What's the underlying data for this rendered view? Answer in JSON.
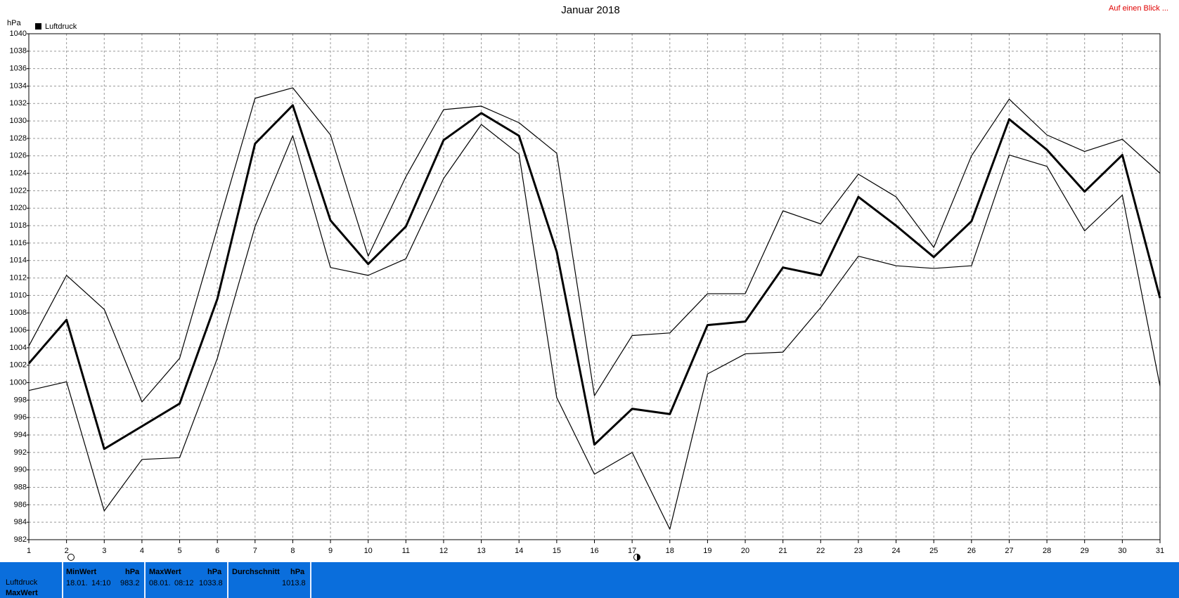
{
  "chart_data": {
    "type": "line",
    "title": "Januar 2018",
    "y_unit": "hPa",
    "legend": "Luftdruck",
    "x": [
      1,
      2,
      3,
      4,
      5,
      6,
      7,
      8,
      9,
      10,
      11,
      12,
      13,
      14,
      15,
      16,
      17,
      18,
      19,
      20,
      21,
      22,
      23,
      24,
      25,
      26,
      27,
      28,
      29,
      30,
      31
    ],
    "xlim": [
      1,
      31
    ],
    "xticks": [
      1,
      2,
      3,
      4,
      5,
      6,
      7,
      8,
      9,
      10,
      11,
      12,
      13,
      14,
      15,
      16,
      17,
      18,
      19,
      20,
      21,
      22,
      23,
      24,
      25,
      26,
      27,
      28,
      29,
      30,
      31
    ],
    "ylim": [
      982,
      1040
    ],
    "yticks": [
      982,
      984,
      986,
      988,
      990,
      992,
      994,
      996,
      998,
      1000,
      1002,
      1004,
      1006,
      1008,
      1010,
      1012,
      1014,
      1016,
      1018,
      1020,
      1022,
      1024,
      1026,
      1028,
      1030,
      1032,
      1034,
      1036,
      1038,
      1040
    ],
    "grid": true,
    "series": [
      {
        "color": "#000000",
        "linewidth": 1.2,
        "values": [
          1004.2,
          1012.3,
          1008.4,
          997.8,
          1002.8,
          1017.7,
          1032.6,
          1033.8,
          1028.4,
          1014.5,
          1023.6,
          1031.3,
          1031.7,
          1029.8,
          1026.3,
          998.5,
          1005.4,
          1005.7,
          1010.2,
          1010.2,
          1019.7,
          1018.2,
          1023.9,
          1021.3,
          1015.5,
          1026.0,
          1032.5,
          1028.4,
          1026.5,
          1027.9,
          1024.0
        ]
      },
      {
        "name": "Luftdruck",
        "color": "#000000",
        "linewidth": 3,
        "values": [
          1002.2,
          1007.2,
          992.4,
          995.0,
          997.6,
          1009.6,
          1027.4,
          1031.8,
          1018.6,
          1013.6,
          1017.9,
          1027.8,
          1030.9,
          1028.3,
          1015.0,
          992.9,
          997.0,
          996.4,
          1006.6,
          1007.0,
          1013.2,
          1012.3,
          1021.3,
          1018.0,
          1014.4,
          1018.5,
          1030.2,
          1026.7,
          1021.9,
          1026.1,
          1009.7
        ]
      },
      {
        "color": "#000000",
        "linewidth": 1.2,
        "values": [
          999.1,
          1000.1,
          985.3,
          991.2,
          991.4,
          1002.8,
          1017.9,
          1028.3,
          1013.2,
          1012.3,
          1014.2,
          1023.4,
          1029.6,
          1026.2,
          998.3,
          989.5,
          992.0,
          983.2,
          1001.0,
          1003.3,
          1003.5,
          1008.6,
          1014.5,
          1013.4,
          1013.1,
          1013.4,
          1026.1,
          1024.8,
          1017.4,
          1021.5,
          999.6
        ]
      }
    ]
  },
  "link": "Auf einen Blick ...",
  "summary": {
    "row_labels": [
      "Luftdruck",
      "MaxWert"
    ],
    "columns": [
      {
        "header": "MinWert",
        "unit": "hPa",
        "date": "18.01.",
        "time": "14:10",
        "value": 983.2
      },
      {
        "header": "MaxWert",
        "unit": "hPa",
        "date": "08.01.",
        "time": "08:12",
        "value": 1033.8
      },
      {
        "header": "Durchschnitt",
        "unit": "hPa",
        "value": 1013.8
      }
    ]
  }
}
